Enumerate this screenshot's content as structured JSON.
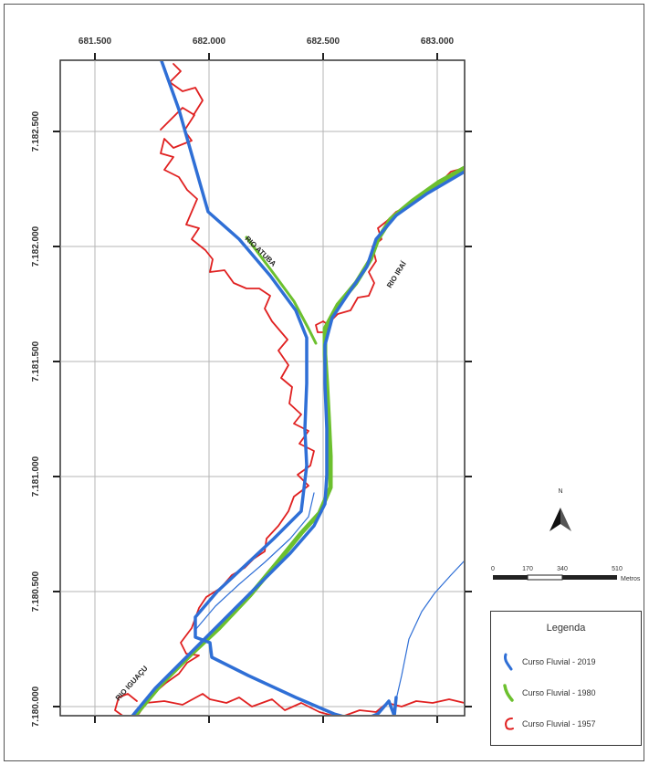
{
  "map": {
    "x_ticks": [
      "681.500",
      "682.000",
      "682.500",
      "683.000"
    ],
    "y_ticks": [
      "7.182.500",
      "7.182.000",
      "7.181.500",
      "7.181.000",
      "7.180.500",
      "7.180.000"
    ],
    "rivers": {
      "atuba": "RIO ATUBA",
      "irai": "RIO IRAÍ",
      "iguacu": "RIO IGUAÇU"
    },
    "north_label": "N",
    "scale": {
      "labels": [
        "0",
        "170",
        "340",
        "510"
      ],
      "unit": "Metros"
    }
  },
  "legend": {
    "title": "Legenda",
    "items": [
      {
        "label": "Curso Fluvial - 2019",
        "color": "#2f6fd6",
        "icon": "river-course-2019-icon"
      },
      {
        "label": "Curso Fluvial - 1980",
        "color": "#6cc02e",
        "icon": "river-course-1980-icon"
      },
      {
        "label": "Curso Fluvial - 1957",
        "color": "#e02020",
        "icon": "river-course-1957-icon"
      }
    ]
  },
  "colors": {
    "river_2019": "#2f6fd6",
    "river_1980": "#6cc02e",
    "river_1957": "#e02020",
    "grid": "#b5b5b5"
  }
}
